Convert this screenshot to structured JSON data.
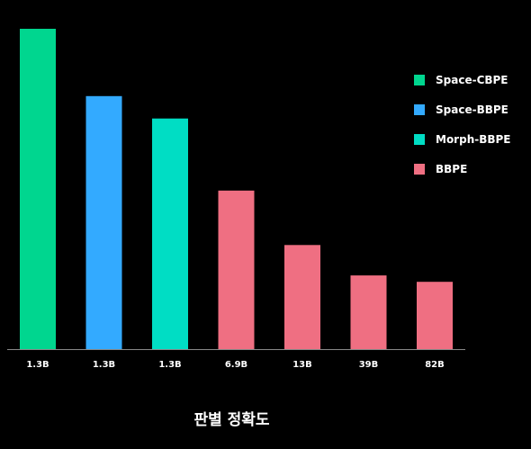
{
  "chart_data": {
    "type": "bar",
    "title": "판별 정확도",
    "xlabel": "",
    "ylabel": "",
    "categories": [
      "1.3B",
      "1.3B",
      "1.3B",
      "6.9B",
      "13B",
      "39B",
      "82B"
    ],
    "values": [
      100,
      79,
      72,
      49.5,
      32.5,
      23,
      21
    ],
    "bar_series": [
      "Space-CBPE",
      "Space-BBPE",
      "Morph-BBPE",
      "BBPE",
      "BBPE",
      "BBPE",
      "BBPE"
    ],
    "ylim": [
      0,
      100
    ],
    "grid": false,
    "legend_position": "top-right",
    "series": [
      {
        "name": "Space-CBPE",
        "color": "#00D68F"
      },
      {
        "name": "Space-BBPE",
        "color": "#33AAFF"
      },
      {
        "name": "Morph-BBPE",
        "color": "#00DDC4"
      },
      {
        "name": "BBPE",
        "color": "#EF6F82"
      }
    ],
    "axis_color": "#888888"
  }
}
